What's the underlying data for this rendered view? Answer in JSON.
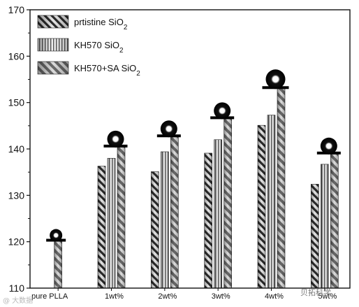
{
  "chart_data": {
    "type": "bar",
    "title": "",
    "xlabel": "",
    "ylabel": "",
    "ylim": [
      110,
      170
    ],
    "yticks": [
      110,
      120,
      130,
      140,
      150,
      160,
      170
    ],
    "categories": [
      "pure PLLA",
      "1wt%",
      "2wt%",
      "3wt%",
      "4wt%",
      "5wt%"
    ],
    "series": [
      {
        "name": "prtistine SiO2",
        "values": [
          null,
          136.3,
          135.1,
          139.1,
          145.1,
          132.4
        ]
      },
      {
        "name": "KH570 SiO2",
        "values": [
          null,
          138.0,
          139.4,
          142.0,
          147.3,
          136.7
        ]
      },
      {
        "name": "KH570+SA SiO2",
        "values": [
          120.1,
          140.4,
          142.6,
          146.5,
          153.0,
          138.9
        ]
      }
    ],
    "legend_position": "top-left",
    "annotation": "water droplet contact-angle icon above each group"
  },
  "watermarks": {
    "left": "@ 大数据",
    "right": "贝拓科学"
  },
  "colors": {
    "bar_stroke": "#222222",
    "axis": "#111111"
  }
}
